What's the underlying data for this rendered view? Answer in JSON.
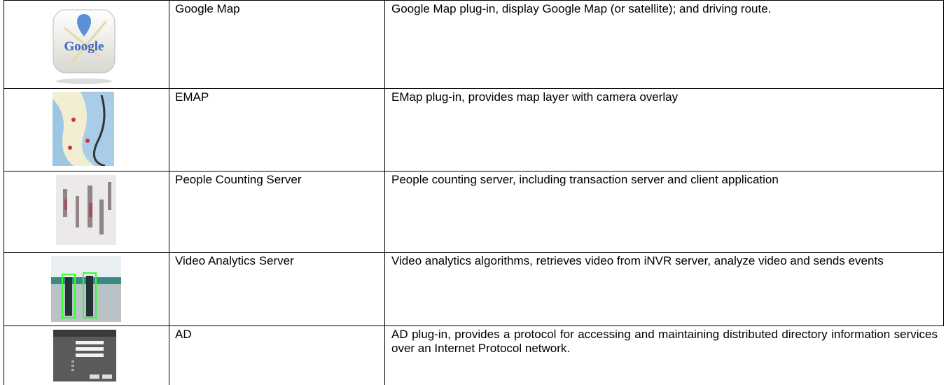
{
  "table": {
    "rows": [
      {
        "name": "Google Map",
        "description": "Google Map plug-in, display Google Map (or satellite); and driving route."
      },
      {
        "name": "EMAP",
        "description": "EMap plug-in, provides map layer with camera overlay"
      },
      {
        "name": "People Counting Server",
        "description": "People counting server, including transaction server and client application"
      },
      {
        "name": "Video Analytics Server",
        "description": "Video analytics algorithms, retrieves video from iNVR server, analyze video and sends events"
      },
      {
        "name": "AD",
        "description": "AD plug-in, provides a protocol for accessing and maintaining distributed directory information services over an Internet Protocol network."
      }
    ]
  }
}
